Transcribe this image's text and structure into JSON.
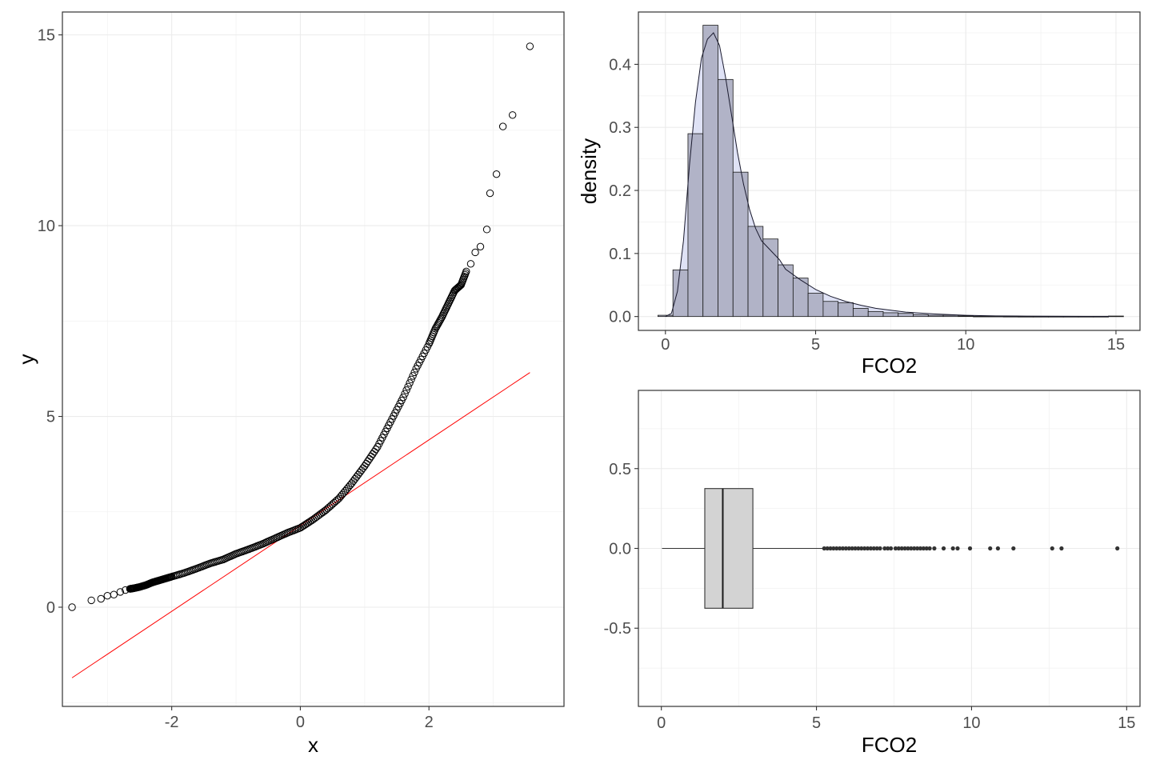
{
  "chart_data": [
    {
      "type": "scatter",
      "subtype": "qq-plot",
      "xlabel": "x",
      "ylabel": "y",
      "xlim": [
        -3.7,
        4.1
      ],
      "ylim": [
        -2.6,
        15.6
      ],
      "x_ticks": [
        -2,
        0,
        2
      ],
      "y_ticks": [
        0,
        5,
        10,
        15
      ],
      "tick_labels_x": [
        "-2",
        "0",
        "2"
      ],
      "tick_labels_y": [
        "0",
        "5",
        "10",
        "15"
      ],
      "grid": true,
      "series": [
        {
          "kind": "points",
          "color": "#000000",
          "x": [
            -3.55,
            -3.25,
            -3.1,
            -3.0,
            -2.9,
            -2.8,
            -2.72,
            -2.65,
            -2.58,
            -2.5,
            -2.4,
            -2.3,
            -2.2,
            -2.1,
            -2.0,
            -1.8,
            -1.6,
            -1.4,
            -1.2,
            -1.0,
            -0.8,
            -0.6,
            -0.4,
            -0.2,
            0.0,
            0.2,
            0.4,
            0.6,
            0.8,
            1.0,
            1.2,
            1.4,
            1.6,
            1.8,
            2.0,
            2.1,
            2.2,
            2.3,
            2.4,
            2.5,
            2.58,
            2.65,
            2.72,
            2.8,
            2.9,
            2.95,
            3.05,
            3.15,
            3.3,
            3.57
          ],
          "y": [
            0.0,
            0.18,
            0.22,
            0.3,
            0.33,
            0.4,
            0.45,
            0.48,
            0.5,
            0.53,
            0.58,
            0.65,
            0.7,
            0.75,
            0.8,
            0.9,
            1.02,
            1.15,
            1.25,
            1.4,
            1.52,
            1.65,
            1.8,
            1.95,
            2.08,
            2.3,
            2.55,
            2.85,
            3.25,
            3.7,
            4.2,
            4.85,
            5.5,
            6.25,
            6.9,
            7.3,
            7.6,
            7.95,
            8.3,
            8.45,
            8.8,
            9.0,
            9.3,
            9.45,
            9.9,
            10.85,
            11.35,
            12.6,
            12.9,
            14.7
          ]
        },
        {
          "kind": "reference-line",
          "color": "#ff0000",
          "x": [
            -3.55,
            3.57
          ],
          "y": [
            -1.85,
            6.15
          ]
        }
      ]
    },
    {
      "type": "bar",
      "subtype": "histogram-with-density",
      "xlabel": "FCO2",
      "ylabel": "density",
      "xlim": [
        -0.9,
        15.8
      ],
      "ylim": [
        -0.022,
        0.483
      ],
      "x_ticks": [
        0,
        5,
        10,
        15
      ],
      "y_ticks": [
        0.0,
        0.1,
        0.2,
        0.3,
        0.4
      ],
      "tick_labels_x": [
        "0",
        "5",
        "10",
        "15"
      ],
      "tick_labels_y": [
        "0.0",
        "0.1",
        "0.2",
        "0.3",
        "0.4"
      ],
      "grid": true,
      "bar_fill": "#aeb0c4",
      "bar_stroke": "#1a1a1a",
      "density_fill": "#dfe2f5",
      "bin_width": 0.5,
      "bin_starts": [
        -0.25,
        0.25,
        0.75,
        1.25,
        1.75,
        2.25,
        2.75,
        3.25,
        3.75,
        4.25,
        4.75,
        5.25,
        5.75,
        6.25,
        6.75,
        7.25,
        7.75,
        8.25,
        8.75,
        9.25,
        9.75,
        10.25,
        10.75,
        11.25,
        11.75,
        12.25,
        12.75,
        13.25,
        13.75,
        14.25,
        14.75
      ],
      "values": [
        0.002,
        0.074,
        0.29,
        0.462,
        0.376,
        0.229,
        0.143,
        0.123,
        0.082,
        0.061,
        0.037,
        0.024,
        0.022,
        0.013,
        0.008,
        0.006,
        0.005,
        0.003,
        0.002,
        0.002,
        0.001,
        0.0005,
        0.0005,
        0.0003,
        0.0002,
        0.0002,
        0.0002,
        0.0002,
        0.0002,
        0.0002,
        0.0008
      ],
      "density_x": [
        0.0,
        0.2,
        0.4,
        0.6,
        0.8,
        1.0,
        1.2,
        1.4,
        1.6,
        1.8,
        2.0,
        2.2,
        2.4,
        2.6,
        2.8,
        3.0,
        3.2,
        3.4,
        3.6,
        3.8,
        4.0,
        4.5,
        5.0,
        5.5,
        6.0,
        6.5,
        7.0,
        8.0,
        9.0,
        10.0,
        11.0,
        12.0,
        13.0,
        14.0,
        14.8
      ],
      "density_y": [
        0.0,
        0.005,
        0.04,
        0.12,
        0.24,
        0.34,
        0.41,
        0.44,
        0.45,
        0.43,
        0.38,
        0.32,
        0.26,
        0.21,
        0.17,
        0.14,
        0.12,
        0.11,
        0.1,
        0.09,
        0.075,
        0.058,
        0.043,
        0.032,
        0.024,
        0.018,
        0.013,
        0.007,
        0.004,
        0.002,
        0.001,
        0.0007,
        0.0005,
        0.0003,
        0.0003
      ]
    },
    {
      "type": "box",
      "xlabel": "FCO2",
      "ylabel": "",
      "xlim": [
        -0.74,
        15.43
      ],
      "ylim": [
        -0.99,
        0.99
      ],
      "x_ticks": [
        0,
        5,
        10,
        15
      ],
      "y_ticks": [
        -0.5,
        0.0,
        0.5
      ],
      "tick_labels_x": [
        "0",
        "5",
        "10",
        "15"
      ],
      "tick_labels_y": [
        "-0.5",
        "0.0",
        "0.5"
      ],
      "grid": true,
      "box_fill": "#d3d3d3",
      "whisker_low": 0.02,
      "q1": 1.4,
      "median": 1.98,
      "q3": 2.95,
      "whisker_high": 5.2,
      "box_half_height": 0.375,
      "outliers": [
        5.25,
        5.35,
        5.45,
        5.55,
        5.65,
        5.75,
        5.85,
        5.95,
        6.05,
        6.15,
        6.25,
        6.35,
        6.45,
        6.55,
        6.65,
        6.75,
        6.85,
        6.95,
        7.05,
        7.2,
        7.3,
        7.4,
        7.55,
        7.65,
        7.75,
        7.85,
        7.95,
        8.05,
        8.15,
        8.25,
        8.35,
        8.45,
        8.55,
        8.65,
        8.8,
        9.1,
        9.4,
        9.55,
        9.95,
        10.6,
        10.85,
        11.35,
        12.6,
        12.9,
        14.7
      ]
    }
  ]
}
